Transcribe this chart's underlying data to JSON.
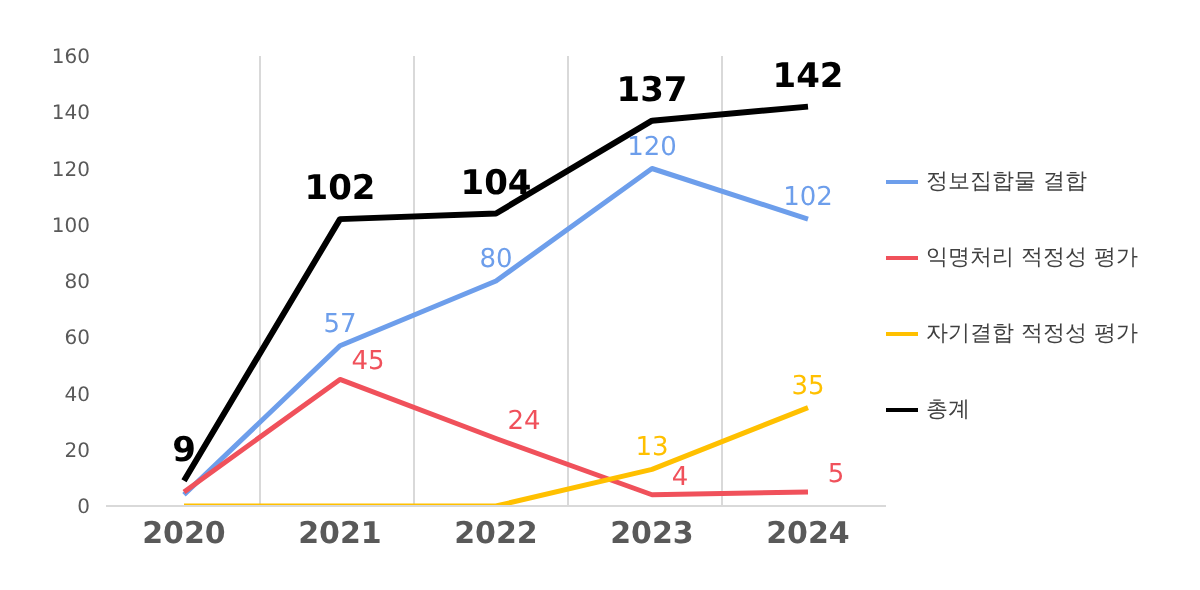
{
  "chart_data": {
    "type": "line",
    "categories": [
      "2020",
      "2021",
      "2022",
      "2023",
      "2024"
    ],
    "series": [
      {
        "name": "정보집합물 결합",
        "color": "#6d9eeb",
        "values": [
          4,
          57,
          80,
          120,
          102
        ],
        "value_labels": [
          null,
          "57",
          "80",
          "120",
          "102"
        ]
      },
      {
        "name": "익명처리 적정성 평가",
        "color": "#f0515b",
        "values": [
          5,
          45,
          24,
          4,
          5
        ],
        "value_labels": [
          null,
          "45",
          "24",
          "4",
          "5"
        ]
      },
      {
        "name": "자기결합 적정성 평가",
        "color": "#ffc000",
        "values": [
          0,
          0,
          0,
          13,
          35
        ],
        "value_labels": [
          null,
          null,
          null,
          "13",
          "35"
        ]
      },
      {
        "name": "총계",
        "color": "#000000",
        "values": [
          9,
          102,
          104,
          137,
          142
        ],
        "value_labels": [
          "9",
          "102",
          "104",
          "137",
          "142"
        ]
      }
    ],
    "ylim": [
      0,
      160
    ],
    "yticks": [
      0,
      20,
      40,
      60,
      80,
      100,
      120,
      140,
      160
    ],
    "grid": "x",
    "legend": "right",
    "marker": "none",
    "line_style": "solid"
  }
}
